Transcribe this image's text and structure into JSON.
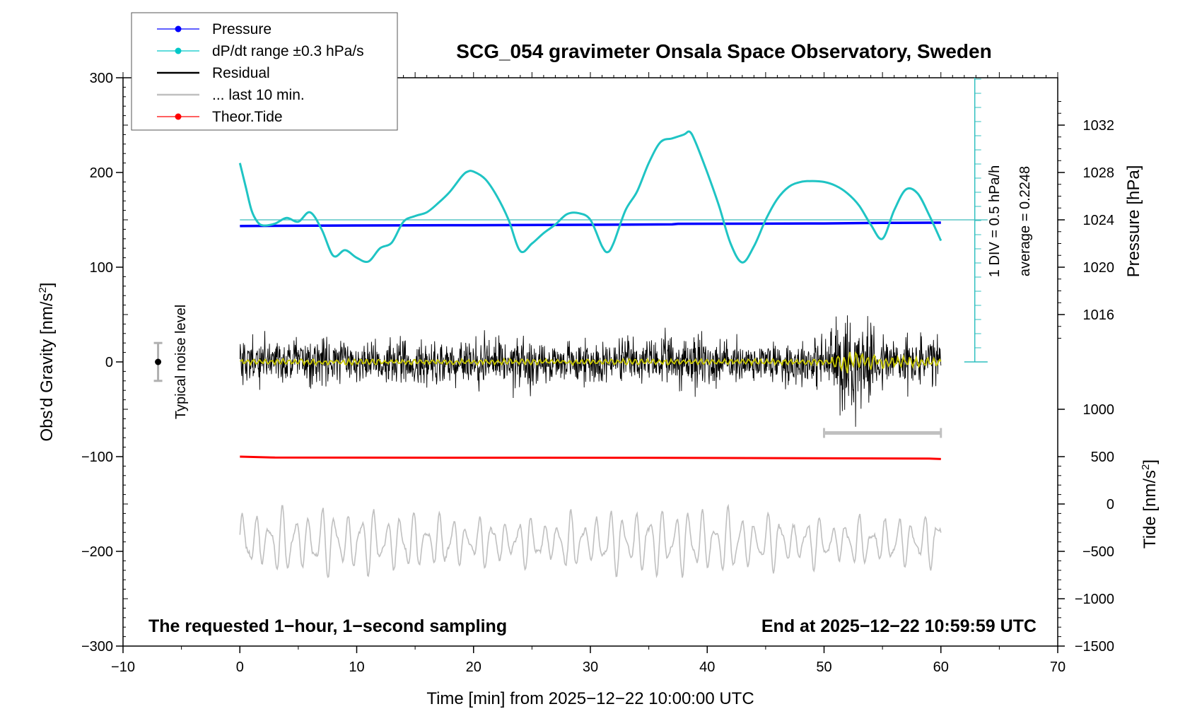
{
  "chart_data": {
    "type": "line",
    "title": "SCG_054 gravimeter Onsala Space Observatory, Sweden",
    "xlabel": "Time [min] from 2025−12−22 10:00:00 UTC",
    "ylabel_main": "Obs'd Gravity [nm/s",
    "ylabel_main_sup": "2",
    "ylabel_main_end": "]",
    "ylabel_pressure": "Pressure [hPa]",
    "ylabel_tide": "Tide [nm/s",
    "ylabel_tide_sup": "2",
    "ylabel_tide_end": "]",
    "xlim": [
      -10,
      70
    ],
    "ylim": [
      -300,
      300
    ],
    "x_ticks": [
      "−10",
      "0",
      "10",
      "20",
      "30",
      "40",
      "50",
      "60",
      "70"
    ],
    "y_ticks": [
      "300",
      "200",
      "100",
      "0",
      "−100",
      "−200",
      "−300"
    ],
    "pressure_ticks": [
      "1032",
      "1028",
      "1024",
      "1020",
      "1016",
      "1000"
    ],
    "pressure_tick_values": [
      1032,
      1028,
      1024,
      1020,
      1016,
      1000
    ],
    "tide_ticks": [
      "500",
      "0",
      "−500",
      "−1000",
      "−1500"
    ],
    "tide_tick_values": [
      500,
      0,
      -500,
      -1000,
      -1500
    ],
    "note_left": "The requested 1−hour, 1−second sampling",
    "note_right": "End at 2025−12−22 10:59:59 UTC",
    "noise_label": "Typical noise level",
    "noise_level": 20,
    "dpdt_scale_label": "1 DIV = 0.5 hPa/h",
    "average_label": "average = 0.2248",
    "last10_range": [
      50,
      60
    ],
    "legend": [
      {
        "label": "Pressure",
        "color": "#0000ff",
        "marker": true
      },
      {
        "label": "dP/dt range ±0.3 hPa/s",
        "color": "#00c8c8",
        "marker": true
      },
      {
        "label": "Residual",
        "color": "#000000",
        "marker": false
      },
      {
        "label": "... last 10 min.",
        "color": "#c0c0c0",
        "marker": false
      },
      {
        "label": "Theor.Tide",
        "color": "#ff0000",
        "marker": true
      }
    ],
    "series": [
      {
        "name": "dP/dt",
        "color": "#1fc4c4",
        "x": [
          0,
          0.5,
          1,
          1.5,
          2,
          3,
          4,
          5,
          6,
          7,
          8,
          9,
          10,
          11,
          12,
          13,
          14,
          15,
          16,
          17,
          18,
          19,
          19.5,
          20,
          21,
          22,
          23,
          24,
          25,
          26,
          27,
          28,
          29,
          30,
          31,
          31.5,
          32,
          33,
          34,
          35,
          36,
          37,
          38,
          38.5,
          39,
          40,
          41,
          42,
          43,
          44,
          45,
          46,
          47,
          48,
          49,
          50,
          51,
          52,
          53,
          54,
          55,
          56,
          57,
          58,
          59,
          60
        ],
        "values": [
          210,
          185,
          160,
          148,
          144,
          146,
          152,
          148,
          158,
          140,
          112,
          118,
          110,
          106,
          120,
          126,
          148,
          154,
          158,
          168,
          180,
          196,
          201,
          201,
          193,
          175,
          150,
          117,
          125,
          136,
          145,
          156,
          157,
          150,
          122,
          116,
          126,
          160,
          180,
          210,
          232,
          236,
          240,
          243,
          232,
          200,
          165,
          125,
          105,
          122,
          150,
          172,
          185,
          190,
          191,
          190,
          186,
          178,
          165,
          145,
          130,
          160,
          182,
          178,
          155,
          128
        ]
      },
      {
        "name": "Pressure",
        "color": "#0000ff",
        "x": [
          0,
          10,
          20,
          30,
          37,
          37.5,
          45,
          50,
          55,
          60
        ],
        "values": [
          143.5,
          144.0,
          144.3,
          144.8,
          145.2,
          145.8,
          146.0,
          146.2,
          146.8,
          147.0
        ]
      },
      {
        "name": "Theor.Tide",
        "color": "#ff0000",
        "x": [
          0,
          3,
          34.5,
          59,
          60
        ],
        "values": [
          -100,
          -101,
          -101.2,
          -102,
          -102.5
        ]
      },
      {
        "name": "Residual",
        "color": "#000000",
        "x_range": [
          0,
          60
        ],
        "envelope": [
          [
            0,
            35
          ],
          [
            2,
            40
          ],
          [
            5,
            38
          ],
          [
            8,
            32
          ],
          [
            10,
            30
          ],
          [
            15,
            33
          ],
          [
            20,
            34
          ],
          [
            24.5,
            44
          ],
          [
            26,
            32
          ],
          [
            30,
            32
          ],
          [
            35,
            34
          ],
          [
            39,
            45
          ],
          [
            42,
            33
          ],
          [
            47,
            34
          ],
          [
            50,
            40
          ],
          [
            51.3,
            70
          ],
          [
            52,
            98
          ],
          [
            52.8,
            70
          ],
          [
            54,
            50
          ],
          [
            56,
            45
          ],
          [
            58,
            40
          ],
          [
            60,
            38
          ]
        ]
      },
      {
        "name": "Residual smoothed",
        "color": "#c8c800",
        "x_range": [
          0,
          60
        ],
        "envelope": [
          [
            0,
            3
          ],
          [
            50,
            3
          ],
          [
            51.5,
            14
          ],
          [
            52.5,
            10
          ],
          [
            54,
            8
          ],
          [
            56,
            6
          ],
          [
            60,
            4
          ]
        ]
      },
      {
        "name": "... last 10 min.",
        "color": "#c0c0c0",
        "x_range": [
          0,
          60
        ],
        "center": -190,
        "amplitude": 32
      }
    ],
    "pressure_axis": {
      "ref_value": 1024,
      "ref_y": 150,
      "units_per_hpa": 12.5
    },
    "tide_axis": {
      "ref_value": 0,
      "ref_y": -150,
      "units_per_tide": 0.1
    },
    "dpdt_reference_y": 150
  }
}
